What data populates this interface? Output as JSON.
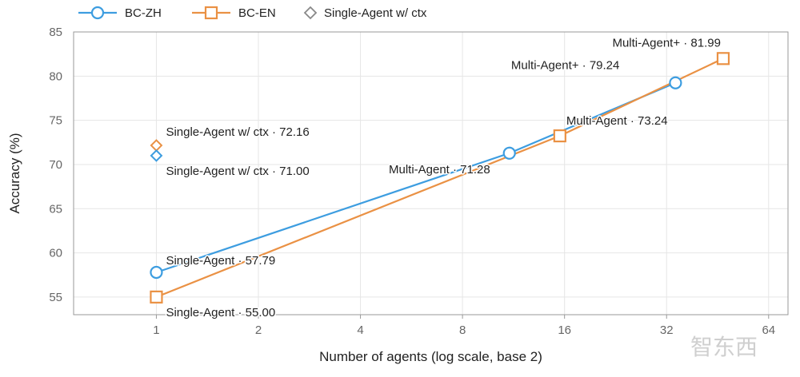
{
  "colors": {
    "bc_zh": "#3d9de0",
    "bc_en": "#ea9144",
    "single_ctx": "#888888",
    "grid": "#e6e6e6",
    "axis": "#999999"
  },
  "legend": {
    "items": [
      {
        "label": "BC-ZH",
        "marker": "circle",
        "color": "#3d9de0"
      },
      {
        "label": "BC-EN",
        "marker": "square",
        "color": "#ea9144"
      },
      {
        "label": "Single-Agent w/ ctx",
        "marker": "diamond",
        "color": "#888888"
      }
    ]
  },
  "watermark": {
    "text": "智东西"
  },
  "chart_data": {
    "type": "line",
    "xlabel": "Number of agents (log scale, base 2)",
    "ylabel": "Accuracy (%)",
    "x_scale": "log2",
    "xticks": [
      1,
      2,
      4,
      8,
      16,
      32,
      64
    ],
    "xticklabels": [
      "1",
      "2",
      "4",
      "8",
      "16",
      "32",
      "64"
    ],
    "xlim": [
      0.57,
      73
    ],
    "ylim": [
      53,
      85
    ],
    "yticks": [
      55,
      60,
      65,
      70,
      75,
      80,
      85
    ],
    "grid": true,
    "legend_position": "top-left",
    "series": [
      {
        "name": "BC-ZH",
        "marker": "circle",
        "x": [
          1,
          11,
          34
        ],
        "y": [
          57.79,
          71.28,
          79.24
        ]
      },
      {
        "name": "BC-EN",
        "marker": "square",
        "x": [
          1,
          15.5,
          47
        ],
        "y": [
          55.0,
          73.24,
          81.99
        ]
      }
    ],
    "extra_points": [
      {
        "label": "Single-Agent w/ ctx",
        "marker": "diamond",
        "color_series": "BC-EN",
        "x": 1,
        "y": 72.16
      },
      {
        "label": "Single-Agent w/ ctx",
        "marker": "diamond",
        "color_series": "BC-ZH",
        "x": 1,
        "y": 71.0
      }
    ],
    "annotations": [
      {
        "text": "Single-Agent w/ ctx · 72.16"
      },
      {
        "text": "Single-Agent w/ ctx · 71.00"
      },
      {
        "text": "Single-Agent · 57.79"
      },
      {
        "text": "Single-Agent · 55.00"
      },
      {
        "text": "Multi-Agent · 71.28"
      },
      {
        "text": "Multi-Agent · 73.24"
      },
      {
        "text": "Multi-Agent+ · 79.24"
      },
      {
        "text": "Multi-Agent+ · 81.99"
      }
    ]
  }
}
